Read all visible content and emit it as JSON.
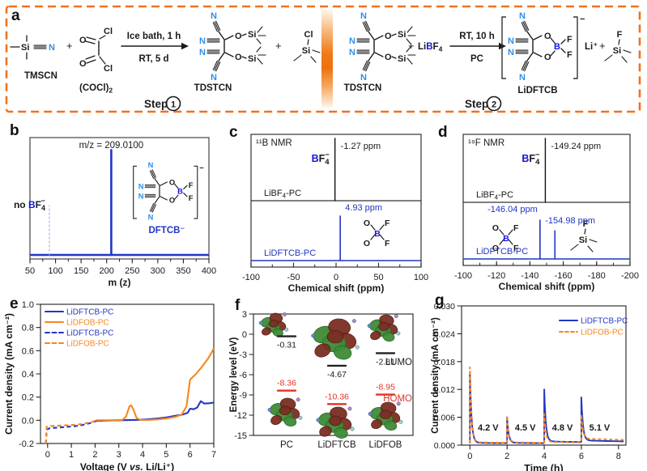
{
  "colors": {
    "accent_orange": "#F2711C",
    "curve_orange": "#F5871F",
    "curve_blue": "#2236C4",
    "atom_light_blue": "#2F8FE8",
    "atom_dark_blue": "#1414E0",
    "homo_red": "#E23227",
    "bond_black": "#1a1a1a",
    "frame_gray": "#3a3a3a"
  },
  "panels": {
    "a": "a",
    "b": "b",
    "c": "c",
    "d": "d",
    "e": "e",
    "f": "f",
    "g": "g"
  },
  "atoms": {
    "N": "N",
    "O": "O",
    "Si": "Si",
    "Cl": "Cl",
    "B": "B",
    "F": "F",
    "charge_minus": "−"
  },
  "panel_a": {
    "tmscn_label": "TMSCN",
    "cocl2_main": "(COCl)",
    "cocl2_sub": "2",
    "arrow1_top": "Ice bath, 1 h",
    "arrow1_bottom": "RT, 5 d",
    "tdstcn_label": "TDSTCN",
    "plus": "+",
    "libf4": {
      "li": "Li",
      "b": "B",
      "f": "F",
      "sub": "4"
    },
    "arrow2_top": "RT, 10 h",
    "arrow2_bottom": "PC",
    "lidftcb_label": "LiDFTCB",
    "li_plus": "Li⁺",
    "step_word": "Step",
    "step1_num": "1",
    "step2_num": "2"
  },
  "chart_data": [
    {
      "id": "b",
      "type": "bar",
      "xlabel": "m (z)",
      "xlim": [
        50,
        400
      ],
      "xticks": [
        50,
        100,
        150,
        200,
        250,
        300,
        350,
        400
      ],
      "main_peak": {
        "mz": 209.01,
        "rel_height": 0.88,
        "label": "m/z = 209.0100"
      },
      "absent_peak": {
        "mz": 88,
        "rel_height": 0.42,
        "label_prefix": "no ",
        "species": {
          "b": "B",
          "f": "F",
          "sub": "4",
          "sup": "−"
        }
      },
      "inset_label": "DFTCB⁻"
    },
    {
      "id": "c",
      "type": "line",
      "nucleus": "¹¹B NMR",
      "xlabel": "Chemical shift (ppm)",
      "xlim": [
        -100,
        100
      ],
      "xticks": [
        -100,
        -50,
        0,
        50,
        100
      ],
      "minor_step": 25,
      "top": {
        "sample_pre": "LiBF",
        "sample_sub": "4",
        "sample_post": "-PC",
        "peak_ppm": -1.27,
        "peak_label": "-1.27 ppm",
        "species": {
          "b": "B",
          "f": "F",
          "sub": "4",
          "sup": "−"
        }
      },
      "bottom": {
        "sample": "LiDFTCB-PC",
        "peaks": [
          {
            "ppm": 4.93,
            "label": "4.93 ppm",
            "rel_height": 0.86
          }
        ]
      }
    },
    {
      "id": "d",
      "type": "line",
      "nucleus": "¹⁹F NMR",
      "xlabel": "Chemical shift (ppm)",
      "xlim": [
        -100,
        -200
      ],
      "xticks": [
        -100,
        -120,
        -140,
        -160,
        -180,
        -200
      ],
      "minor_step": 10,
      "top": {
        "sample_pre": "LiBF",
        "sample_sub": "4",
        "sample_post": "-PC",
        "peak_ppm": -149.24,
        "peak_label": "-149.24 ppm",
        "species": {
          "b": "B",
          "f": "F",
          "sub": "4",
          "sup": "−"
        }
      },
      "bottom": {
        "sample": "LiDFTCB-PC",
        "peaks": [
          {
            "ppm": -146.04,
            "label": "-146.04 ppm",
            "rel_height": 0.8
          },
          {
            "ppm": -154.98,
            "label": "-154.98 ppm",
            "rel_height": 0.58
          }
        ]
      }
    },
    {
      "id": "e",
      "type": "line",
      "xlabel_pre": "Voltage (V ",
      "xlabel_it": "vs.",
      "xlabel_post": " Li/Li⁺)",
      "ylabel": "Current density (mA cm⁻²)",
      "xlim": [
        -0.3,
        7
      ],
      "ylim": [
        -0.2,
        1.0
      ],
      "xticks": [
        0,
        1,
        2,
        3,
        4,
        5,
        6,
        7
      ],
      "yticks": [
        "-0.2",
        "0.0",
        "0.2",
        "0.4",
        "0.6",
        "0.8",
        "1.0"
      ],
      "series": [
        {
          "name": "LiDFTCB-PC",
          "color": "blue",
          "dash": false,
          "points": [
            [
              2.05,
              -0.005
            ],
            [
              2.6,
              -0.002
            ],
            [
              3.2,
              0.001
            ],
            [
              3.8,
              0.004
            ],
            [
              4.2,
              0.008
            ],
            [
              4.6,
              0.015
            ],
            [
              5.0,
              0.025
            ],
            [
              5.4,
              0.04
            ],
            [
              5.7,
              0.05
            ],
            [
              5.9,
              0.065
            ],
            [
              6.0,
              0.1
            ],
            [
              6.15,
              0.095
            ],
            [
              6.3,
              0.11
            ],
            [
              6.45,
              0.165
            ],
            [
              6.6,
              0.145
            ],
            [
              6.8,
              0.147
            ],
            [
              7.0,
              0.152
            ]
          ]
        },
        {
          "name": "LiDFOB-PC",
          "color": "orange",
          "dash": false,
          "points": [
            [
              2.05,
              0
            ],
            [
              2.8,
              0.001
            ],
            [
              3.15,
              0.004
            ],
            [
              3.3,
              0.03
            ],
            [
              3.45,
              0.12
            ],
            [
              3.52,
              0.13
            ],
            [
              3.62,
              0.09
            ],
            [
              3.75,
              0.02
            ],
            [
              3.9,
              0.004
            ],
            [
              4.2,
              0.002
            ],
            [
              4.6,
              0.007
            ],
            [
              5.0,
              0.015
            ],
            [
              5.4,
              0.03
            ],
            [
              5.65,
              0.05
            ],
            [
              5.85,
              0.12
            ],
            [
              6.0,
              0.35
            ],
            [
              6.1,
              0.37
            ],
            [
              6.25,
              0.4
            ],
            [
              6.5,
              0.46
            ],
            [
              6.75,
              0.53
            ],
            [
              6.9,
              0.58
            ],
            [
              7.0,
              0.62
            ]
          ]
        },
        {
          "name": "LiDFTCB-PC",
          "color": "blue",
          "dash": true,
          "points": [
            [
              -0.07,
              -0.2
            ],
            [
              -0.04,
              -0.08
            ],
            [
              0.1,
              -0.068
            ],
            [
              0.5,
              -0.062
            ],
            [
              0.9,
              -0.055
            ],
            [
              1.3,
              -0.047
            ],
            [
              1.6,
              -0.035
            ],
            [
              1.9,
              -0.018
            ],
            [
              2.05,
              -0.005
            ]
          ]
        },
        {
          "name": "LiDFOB-PC",
          "color": "orange",
          "dash": true,
          "points": [
            [
              -0.07,
              -0.2
            ],
            [
              -0.04,
              -0.055
            ],
            [
              0.1,
              -0.05
            ],
            [
              0.5,
              -0.046
            ],
            [
              0.9,
              -0.042
            ],
            [
              1.3,
              -0.036
            ],
            [
              1.6,
              -0.027
            ],
            [
              1.9,
              -0.012
            ],
            [
              2.05,
              0
            ]
          ]
        }
      ]
    },
    {
      "id": "f",
      "type": "bar",
      "ylabel": "Energy level (eV)",
      "ylim": [
        -15,
        3
      ],
      "yticks": [
        3,
        0,
        -3,
        -6,
        -9,
        -12,
        -15
      ],
      "categories": [
        "PC",
        "LiDFTCB",
        "LiDFOB"
      ],
      "lumo": {
        "label": "LUMO",
        "values": [
          -0.31,
          -4.67,
          -2.81
        ],
        "value_labels": [
          "-0.31",
          "-4.67",
          "-2.81"
        ]
      },
      "homo": {
        "label": "HOMO",
        "values": [
          -8.36,
          -10.36,
          -8.95
        ],
        "value_labels": [
          "-8.36",
          "-10.36",
          "-8.95"
        ]
      }
    },
    {
      "id": "g",
      "type": "line",
      "xlabel": "Time (h)",
      "ylabel": "Current density (mA cm⁻²)",
      "xlim": [
        -0.45,
        8.4
      ],
      "ylim": [
        0,
        0.03
      ],
      "xticks": [
        0,
        2,
        4,
        6,
        8
      ],
      "yticks": [
        "0.000",
        "0.006",
        "0.012",
        "0.018",
        "0.024",
        "0.030"
      ],
      "legend": [
        {
          "label": "LiDFTCB-PC",
          "color": "blue",
          "dash": false
        },
        {
          "label": "LiDFOB-PC",
          "color": "orange",
          "dash": true
        }
      ],
      "steps": [
        {
          "t0": 0,
          "voltage_label": "4.2 V",
          "peaks": {
            "blue": 0.0155,
            "orange": 0.0168
          },
          "tails": {
            "blue": 0.0005,
            "orange": 0.0006
          }
        },
        {
          "t0": 2,
          "voltage_label": "4.5 V",
          "peaks": {
            "blue": 0.006,
            "orange": 0.0063
          },
          "tails": {
            "blue": 0.0005,
            "orange": 0.0006
          }
        },
        {
          "t0": 4,
          "voltage_label": "4.8 V",
          "peaks": {
            "blue": 0.012,
            "orange": 0.0067
          },
          "tails": {
            "blue": 0.0008,
            "orange": 0.0007
          }
        },
        {
          "t0": 6,
          "voltage_label": "5.1 V",
          "peaks": {
            "blue": 0.0103,
            "orange": 0.0066
          },
          "tails": {
            "blue": 0.001,
            "orange": 0.0014
          }
        }
      ]
    }
  ]
}
